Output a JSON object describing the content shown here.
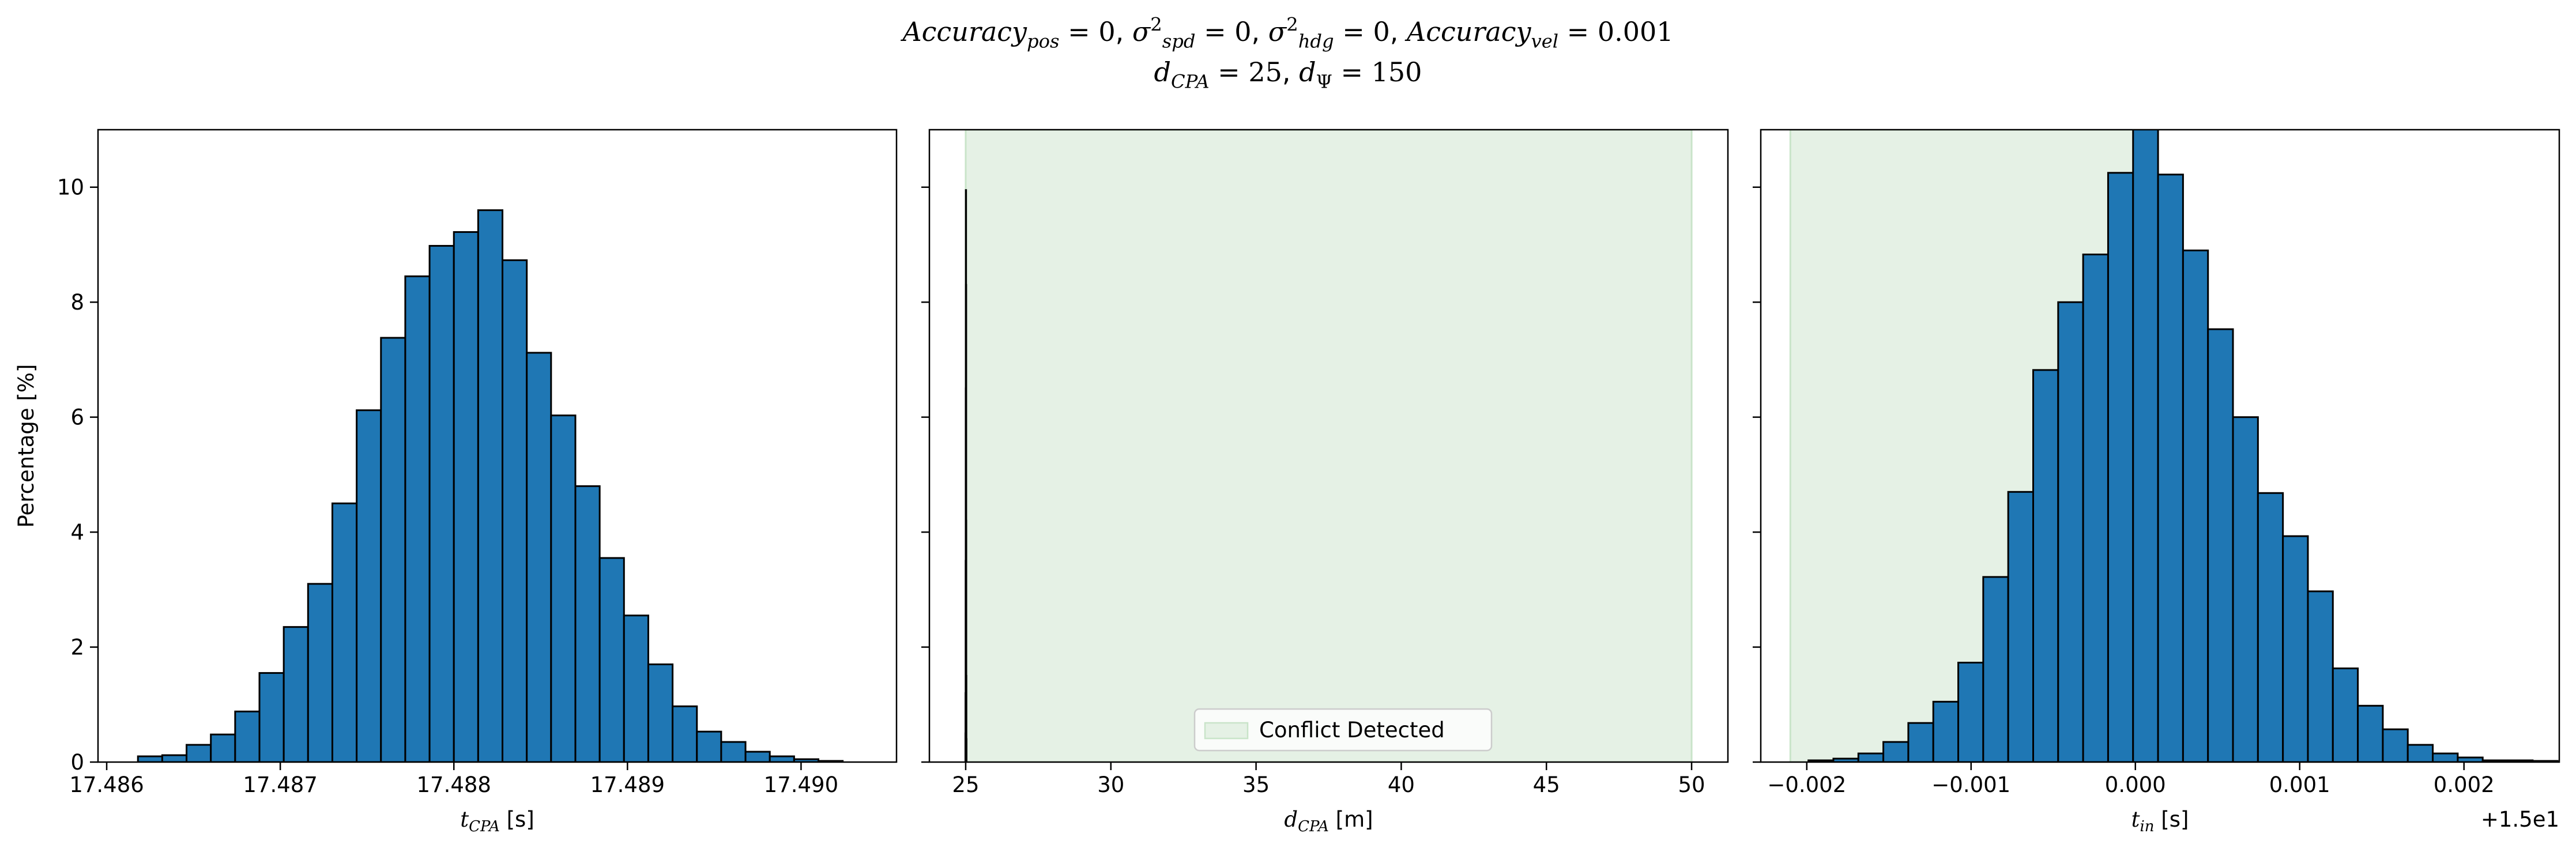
{
  "title": {
    "line1": {
      "acc_pos_sub": "pos",
      "acc_pos_val": "0",
      "spd_sub": "spd",
      "spd_sup": "2",
      "spd_val": "0",
      "hdg_sub": "hdg",
      "hdg_sup": "2",
      "hdg_val": "0",
      "acc_vel_sub": "vel",
      "acc_vel_val": "0.001"
    },
    "line2": {
      "dcpa_sub": "CPA",
      "dcpa_val": "25",
      "dpsi_val": "150"
    }
  },
  "colors": {
    "bar_fill": "#1f77b4",
    "bar_edge": "#000000",
    "shade": "#e5f1e5",
    "shade_edge": "#c9e4c9"
  },
  "chart_data": [
    {
      "type": "bar",
      "ylabel": "Percentage [%]",
      "xlabel": {
        "base": "t",
        "sub": "CPA",
        "unit": " [s]"
      },
      "xlim": [
        17.48595,
        17.49055
      ],
      "ylim": [
        0,
        11
      ],
      "xticks": [
        17.486,
        17.487,
        17.488,
        17.489,
        17.49
      ],
      "xtick_labels": [
        "17.486",
        "17.487",
        "17.488",
        "17.489",
        "17.490"
      ],
      "yticks": [
        0,
        2,
        4,
        6,
        8,
        10
      ],
      "ytick_labels": [
        "0",
        "2",
        "4",
        "6",
        "8",
        "10"
      ],
      "bin_start": 17.48618,
      "bin_width": 0.00014,
      "values": [
        0.1,
        0.12,
        0.3,
        0.48,
        0.88,
        1.55,
        2.35,
        3.1,
        4.5,
        6.12,
        7.38,
        8.45,
        8.98,
        9.22,
        9.6,
        8.73,
        7.12,
        6.03,
        4.8,
        3.55,
        2.55,
        1.7,
        0.97,
        0.53,
        0.35,
        0.18,
        0.1,
        0.05,
        0.02
      ]
    },
    {
      "type": "bar",
      "xlabel": {
        "base": "d",
        "sub": "CPA",
        "unit": " [m]"
      },
      "xlim": [
        23.75,
        51.25
      ],
      "ylim": [
        0,
        11
      ],
      "xticks": [
        25,
        30,
        35,
        40,
        45,
        50
      ],
      "xtick_labels": [
        "25",
        "30",
        "35",
        "40",
        "45",
        "50"
      ],
      "yticks": [
        0,
        2,
        4,
        6,
        8,
        10
      ],
      "shade": [
        25,
        50
      ],
      "legend": {
        "label": "Conflict Detected",
        "placement": "lower-center"
      },
      "bin_start": 24.99,
      "bin_width": 0.0036,
      "values": [
        0.5,
        1.2,
        3.5,
        6.5,
        9.95,
        8.3,
        4.2,
        1.5,
        0.4
      ]
    },
    {
      "type": "bar",
      "xlabel": {
        "base": "t",
        "sub": "in",
        "unit": " [s]"
      },
      "offset_label": "+1.5e1",
      "xlim": [
        -0.00228,
        0.00258
      ],
      "ylim": [
        0,
        11
      ],
      "xticks": [
        -0.002,
        -0.001,
        0,
        0.001,
        0.002
      ],
      "xtick_labels": [
        "−0.002",
        "−0.001",
        "0.000",
        "0.001",
        "0.002"
      ],
      "yticks": [
        0,
        2,
        4,
        6,
        8,
        10
      ],
      "shade": [
        -0.0021,
        5e-05
      ],
      "bin_start": -0.00199,
      "bin_width": 0.000152,
      "values": [
        0.03,
        0.06,
        0.15,
        0.35,
        0.68,
        1.05,
        1.73,
        3.22,
        4.7,
        6.82,
        8.0,
        8.83,
        10.25,
        11.2,
        10.22,
        8.9,
        7.53,
        6.0,
        4.68,
        3.93,
        2.97,
        1.63,
        0.98,
        0.57,
        0.3,
        0.15,
        0.08,
        0.03,
        0.03,
        0.02
      ]
    }
  ]
}
